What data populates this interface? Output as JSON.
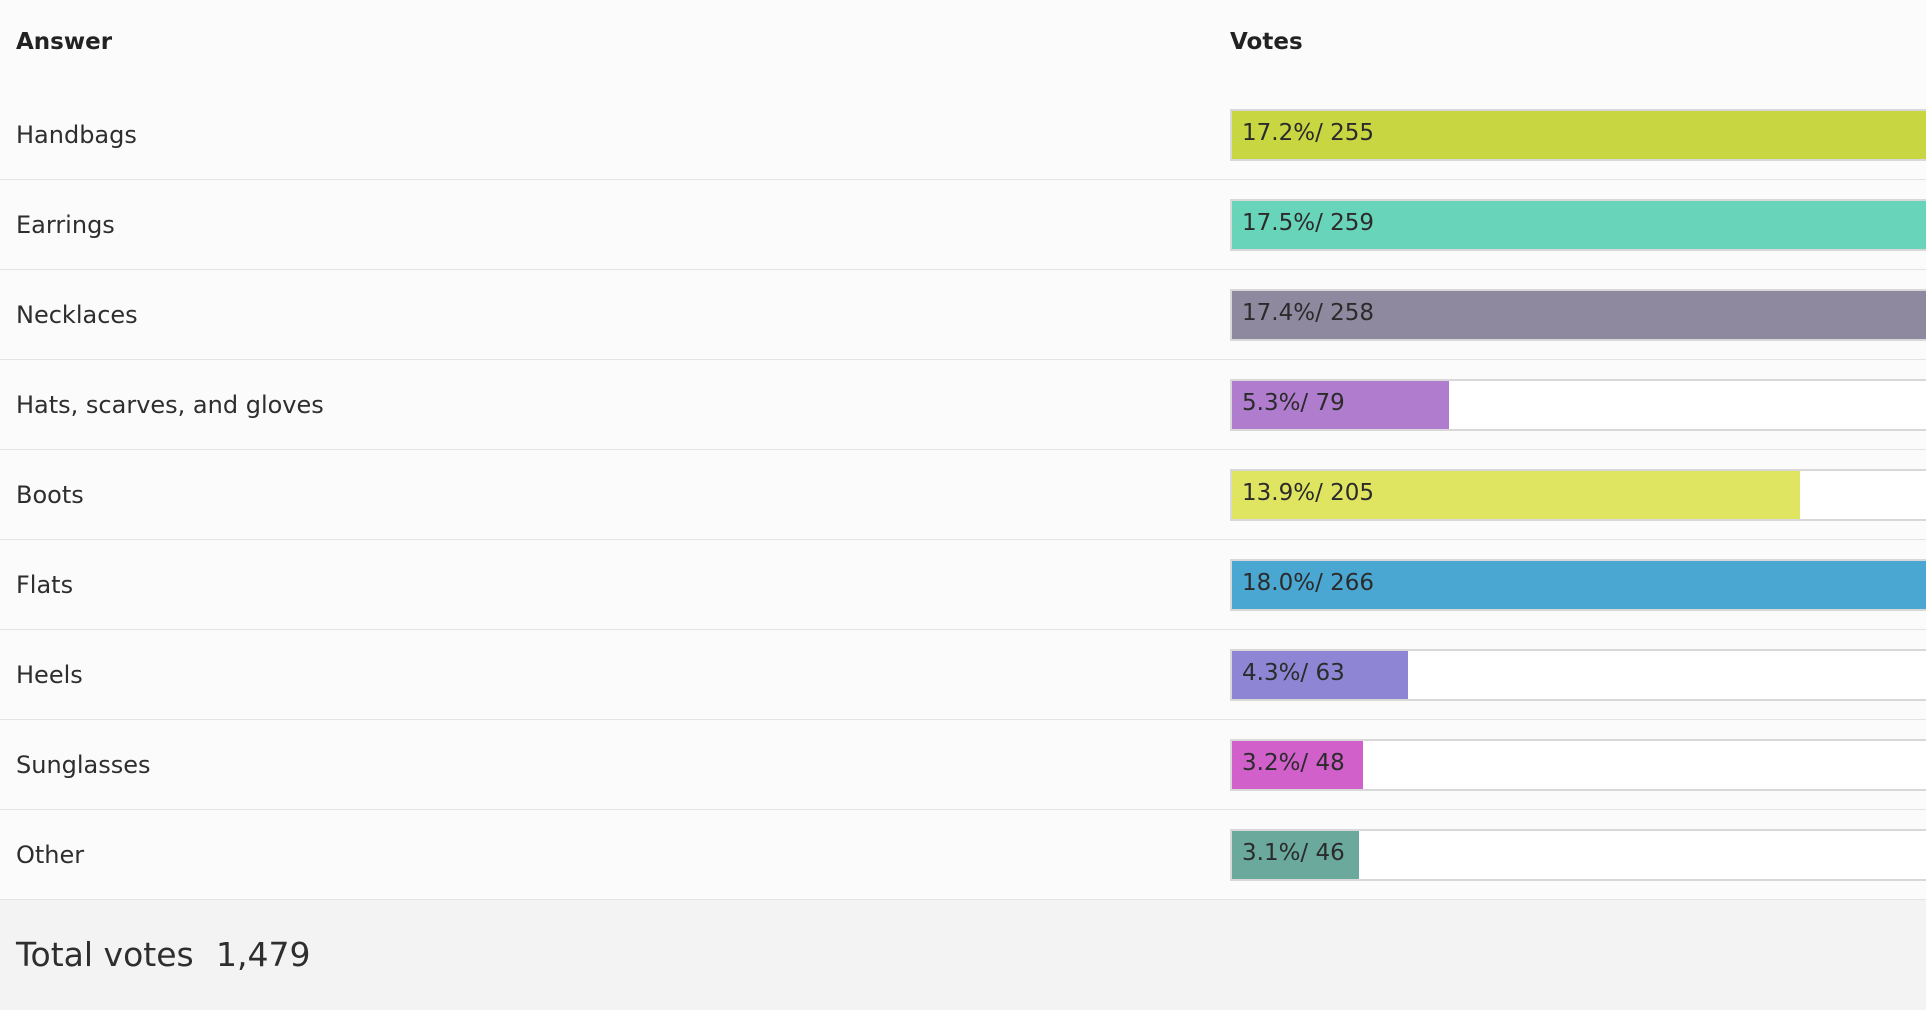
{
  "header": {
    "answer_label": "Answer",
    "votes_label": "Votes"
  },
  "chart_data": {
    "type": "bar",
    "categories": [
      "Handbags",
      "Earrings",
      "Necklaces",
      "Hats, scarves, and gloves",
      "Boots",
      "Flats",
      "Heels",
      "Sunglasses",
      "Other"
    ],
    "values": [
      255,
      259,
      258,
      79,
      205,
      266,
      63,
      48,
      46
    ],
    "percentages": [
      17.2,
      17.5,
      17.4,
      5.3,
      13.9,
      18.0,
      4.3,
      3.2,
      3.1
    ],
    "labels": [
      "17.2%/ 255",
      "17.5%/ 259",
      "17.4%/ 258",
      "5.3%/ 79",
      "13.9%/ 205",
      "18.0%/ 266",
      "4.3%/ 63",
      "3.2%/ 48",
      "3.1%/ 46"
    ],
    "colors": [
      "#c8d641",
      "#68d4b9",
      "#8e899f",
      "#b07ccd",
      "#e0e561",
      "#4aa7d2",
      "#8e86d4",
      "#d160cb",
      "#6aa99c"
    ]
  },
  "footer": {
    "total_label": "Total votes",
    "total_value": "1,479"
  }
}
